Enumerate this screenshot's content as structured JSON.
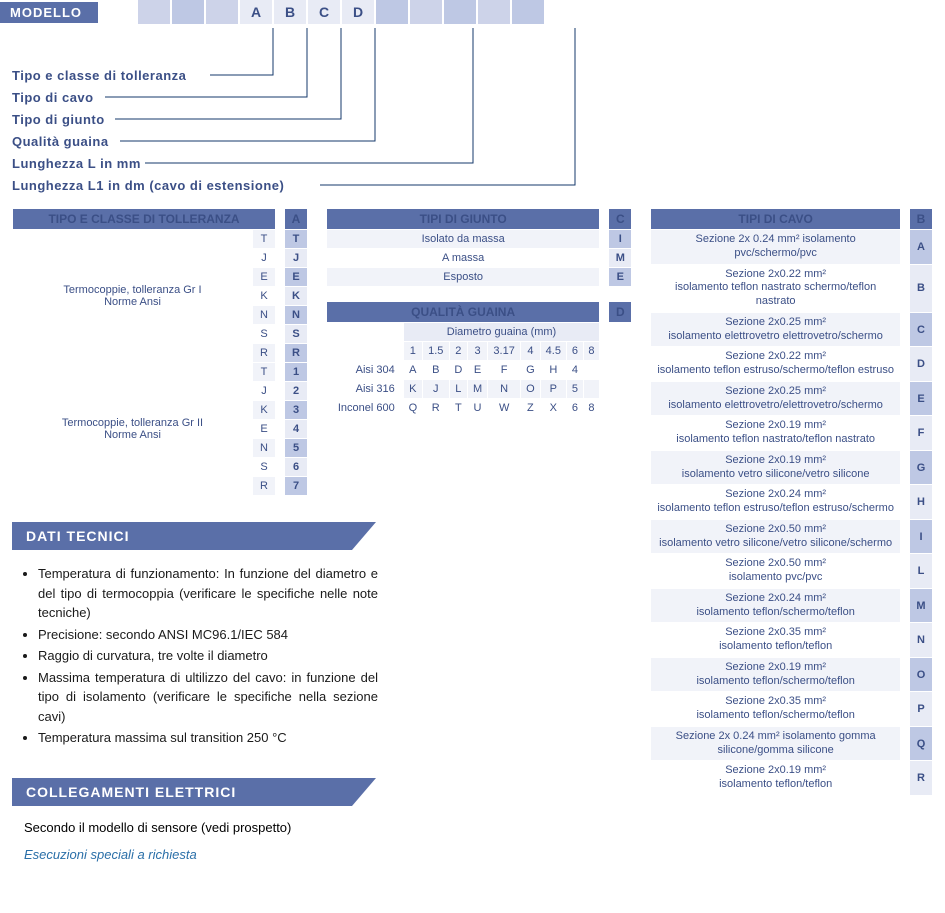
{
  "modello": {
    "label": "MODELLO",
    "boxes": [
      "",
      "",
      "",
      "A",
      "B",
      "C",
      "D",
      "",
      "",
      "",
      "",
      ""
    ],
    "box_colors": {
      "filled": "#cdd3e9",
      "light": "#e8ebf5"
    }
  },
  "callouts": [
    "Tipo e classe di tolleranza",
    "Tipo di cavo",
    "Tipo di giunto",
    "Qualità guaina",
    "Lunghezza L in mm",
    "Lunghezza L1 in dm (cavo di estensione)"
  ],
  "tolleranza": {
    "title": "TIPO E CLASSE DI TOLLERANZA",
    "tag": "A",
    "groups": [
      {
        "label": "Termocoppie, tolleranza Gr I\nNorme Ansi",
        "rows": [
          [
            "T",
            "T"
          ],
          [
            "J",
            "J"
          ],
          [
            "E",
            "E"
          ],
          [
            "K",
            "K"
          ],
          [
            "N",
            "N"
          ],
          [
            "S",
            "S"
          ],
          [
            "R",
            "R"
          ]
        ]
      },
      {
        "label": "Termocoppie, tolleranza Gr II\nNorme Ansi",
        "rows": [
          [
            "T",
            "1"
          ],
          [
            "J",
            "2"
          ],
          [
            "K",
            "3"
          ],
          [
            "E",
            "4"
          ],
          [
            "N",
            "5"
          ],
          [
            "S",
            "6"
          ],
          [
            "R",
            "7"
          ]
        ]
      }
    ]
  },
  "giunto": {
    "title": "TIPI DI GIUNTO",
    "tag": "C",
    "rows": [
      [
        "Isolato da massa",
        "I"
      ],
      [
        "A massa",
        "M"
      ],
      [
        "Esposto",
        "E"
      ]
    ]
  },
  "guaina": {
    "title": "QUALITÀ GUAINA",
    "tag": "D",
    "subheader": "Diametro guaina (mm)",
    "diam": [
      "1",
      "1.5",
      "2",
      "3",
      "3.17",
      "4",
      "4.5",
      "6",
      "8"
    ],
    "rows": [
      {
        "label": "Aisi 304",
        "cells": [
          "A",
          "B",
          "D",
          "E",
          "F",
          "G",
          "H",
          "4",
          ""
        ]
      },
      {
        "label": "Aisi 316",
        "cells": [
          "K",
          "J",
          "L",
          "M",
          "N",
          "O",
          "P",
          "5",
          ""
        ]
      },
      {
        "label": "Inconel 600",
        "cells": [
          "Q",
          "R",
          "T",
          "U",
          "W",
          "Z",
          "X",
          "6",
          "8"
        ]
      }
    ]
  },
  "cavo": {
    "title": "TIPI DI CAVO",
    "tag": "B",
    "rows": [
      [
        "Sezione 2x 0.24 mm² isolamento pvc/schermo/pvc",
        "A"
      ],
      [
        "Sezione 2x0.22 mm²\nisolamento teflon nastrato schermo/teflon nastrato",
        "B"
      ],
      [
        "Sezione 2x0.25 mm²\nisolamento elettrovetro elettrovetro/schermo",
        "C"
      ],
      [
        "Sezione 2x0.22 mm²\nisolamento teflon estruso/schermo/teflon estruso",
        "D"
      ],
      [
        "Sezione 2x0.25 mm²\nisolamento elettrovetro/elettrovetro/schermo",
        "E"
      ],
      [
        "Sezione 2x0.19 mm²\nisolamento teflon nastrato/teflon nastrato",
        "F"
      ],
      [
        "Sezione 2x0.19 mm²\nisolamento vetro silicone/vetro silicone",
        "G"
      ],
      [
        "Sezione 2x0.24 mm²\nisolamento teflon estruso/teflon estruso/schermo",
        "H"
      ],
      [
        "Sezione 2x0.50 mm²\nisolamento vetro silicone/vetro silicone/schermo",
        "I"
      ],
      [
        "Sezione 2x0.50 mm²\nisolamento pvc/pvc",
        "L"
      ],
      [
        "Sezione 2x0.24 mm²\nisolamento teflon/schermo/teflon",
        "M"
      ],
      [
        "Sezione 2x0.35 mm²\nisolamento teflon/teflon",
        "N"
      ],
      [
        "Sezione 2x0.19 mm²\nisolamento teflon/schermo/teflon",
        "O"
      ],
      [
        "Sezione 2x0.35 mm²\nisolamento teflon/schermo/teflon",
        "P"
      ],
      [
        "Sezione 2x 0.24 mm² isolamento gomma\nsilicone/gomma silicone",
        "Q"
      ],
      [
        "Sezione 2x0.19 mm²\nisolamento teflon/teflon",
        "R"
      ]
    ]
  },
  "dati_tecnici": {
    "title": "DATI TECNICI",
    "bullets": [
      "Temperatura di funzionamento: In funzione del diametro e del tipo di termocoppia (verificare le specifiche nelle note tecniche)",
      "Precisione: secondo ANSI MC96.1/IEC 584",
      "Raggio di curvatura, tre volte il diametro",
      "Massima temperatura di ultilizzo del cavo: in funzione del tipo di isolamento (verificare le specifiche nella sezione cavi)",
      "Temperatura massima sul transition 250 °C"
    ]
  },
  "collegamenti": {
    "title": "COLLEGAMENTI ELETTRICI",
    "text": "Secondo il modello di sensore (vedi prospetto)"
  },
  "note": "Esecuzioni speciali a richiesta",
  "colors": {
    "brand": "#5a6fa8",
    "text_blue": "#3b4f86",
    "row_alt": "#f1f3f9",
    "pill": "#bec8e4",
    "line": "#16386b"
  }
}
